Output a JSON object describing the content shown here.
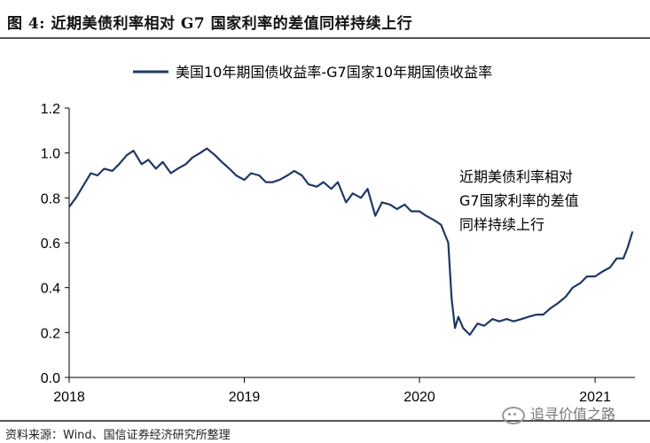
{
  "figure": {
    "title": "图 4:  近期美债利率相对 G7 国家利率的差值同样持续上行",
    "source": "资料来源：Wind、国信证券经济研究所整理",
    "watermark": "追寻价值之路"
  },
  "chart_data": {
    "type": "line",
    "legend": [
      "美国10年期国债收益率-G7国家10年期国债收益率"
    ],
    "legend_position": "top-center",
    "annotation": [
      "近期美债利率相对",
      "G7国家利率的差值",
      "同样持续上行"
    ],
    "x_ticks": [
      "2018",
      "2019",
      "2020",
      "2021"
    ],
    "y_ticks": [
      "0.0",
      "0.2",
      "0.4",
      "0.6",
      "0.8",
      "1.0",
      "1.2"
    ],
    "ylim": [
      0,
      1.2
    ],
    "xlim": [
      "2018-01-01",
      "2021-03-25"
    ],
    "grid": false,
    "line_color": "#1f3864",
    "series": [
      {
        "name": "美国10年期国债收益率-G7国家10年期国债收益率",
        "x": [
          "2018-01-01",
          "2018-01-15",
          "2018-02-01",
          "2018-02-15",
          "2018-03-01",
          "2018-03-15",
          "2018-04-01",
          "2018-04-15",
          "2018-05-01",
          "2018-05-15",
          "2018-06-01",
          "2018-06-15",
          "2018-07-01",
          "2018-07-15",
          "2018-08-01",
          "2018-08-15",
          "2018-09-01",
          "2018-09-15",
          "2018-10-01",
          "2018-10-15",
          "2018-11-01",
          "2018-11-15",
          "2018-12-01",
          "2018-12-15",
          "2019-01-01",
          "2019-01-15",
          "2019-02-01",
          "2019-02-15",
          "2019-03-01",
          "2019-03-15",
          "2019-04-01",
          "2019-04-15",
          "2019-05-01",
          "2019-05-15",
          "2019-06-01",
          "2019-06-15",
          "2019-07-01",
          "2019-07-15",
          "2019-08-01",
          "2019-08-15",
          "2019-09-01",
          "2019-09-15",
          "2019-10-01",
          "2019-10-15",
          "2019-11-01",
          "2019-11-15",
          "2019-12-01",
          "2019-12-15",
          "2020-01-01",
          "2020-01-15",
          "2020-02-01",
          "2020-02-15",
          "2020-03-01",
          "2020-03-08",
          "2020-03-15",
          "2020-03-22",
          "2020-04-01",
          "2020-04-15",
          "2020-05-01",
          "2020-05-15",
          "2020-06-01",
          "2020-06-15",
          "2020-07-01",
          "2020-07-15",
          "2020-08-01",
          "2020-08-15",
          "2020-09-01",
          "2020-09-15",
          "2020-10-01",
          "2020-10-15",
          "2020-11-01",
          "2020-11-15",
          "2020-12-01",
          "2020-12-15",
          "2021-01-01",
          "2021-01-15",
          "2021-02-01",
          "2021-02-15",
          "2021-03-01",
          "2021-03-10",
          "2021-03-20"
        ],
        "values": [
          0.76,
          0.8,
          0.86,
          0.91,
          0.9,
          0.93,
          0.92,
          0.95,
          0.99,
          1.01,
          0.95,
          0.97,
          0.93,
          0.96,
          0.91,
          0.93,
          0.95,
          0.98,
          1.0,
          1.02,
          0.99,
          0.96,
          0.93,
          0.9,
          0.88,
          0.91,
          0.9,
          0.87,
          0.87,
          0.88,
          0.9,
          0.92,
          0.9,
          0.86,
          0.85,
          0.87,
          0.84,
          0.87,
          0.78,
          0.82,
          0.8,
          0.84,
          0.72,
          0.78,
          0.77,
          0.75,
          0.77,
          0.74,
          0.74,
          0.72,
          0.7,
          0.68,
          0.6,
          0.35,
          0.22,
          0.27,
          0.22,
          0.19,
          0.24,
          0.23,
          0.26,
          0.25,
          0.26,
          0.25,
          0.26,
          0.27,
          0.28,
          0.28,
          0.31,
          0.33,
          0.36,
          0.4,
          0.42,
          0.45,
          0.45,
          0.47,
          0.49,
          0.53,
          0.53,
          0.58,
          0.65
        ]
      }
    ]
  }
}
